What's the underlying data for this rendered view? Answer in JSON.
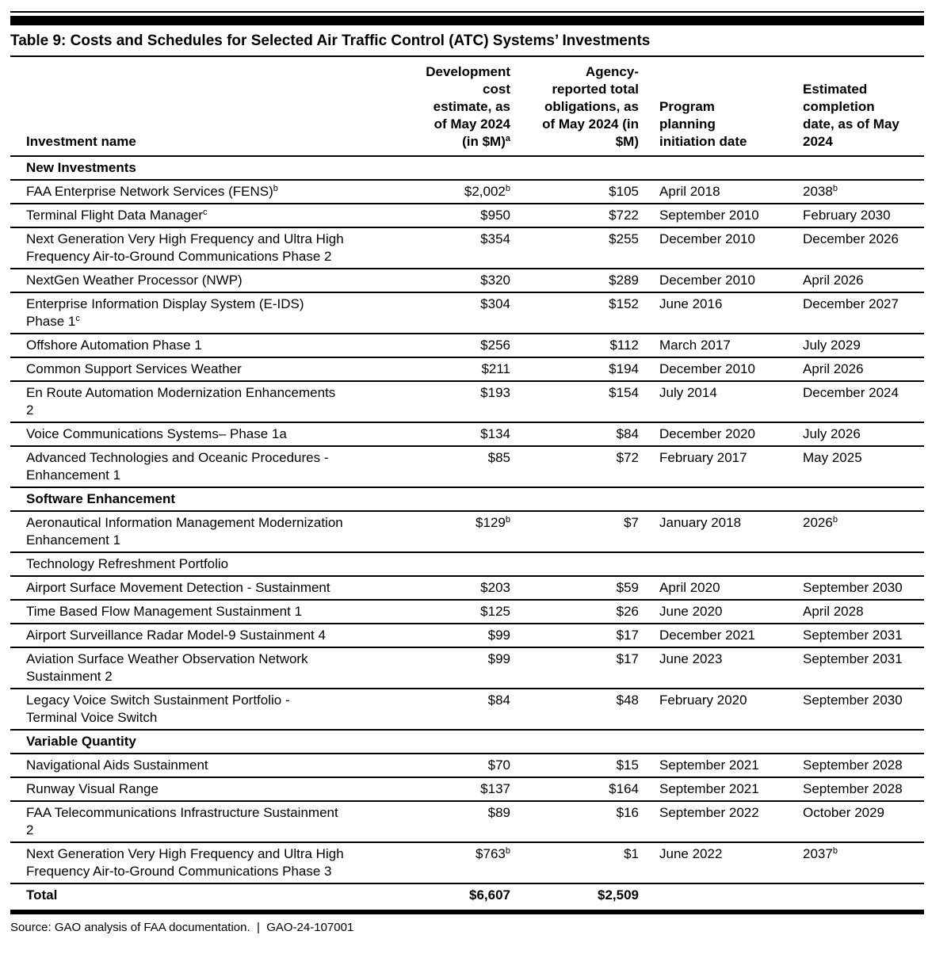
{
  "title": "Table 9: Costs and Schedules for Selected Air Traffic Control (ATC) Systems’ Investments",
  "table": {
    "columns": [
      {
        "label": "Investment name",
        "sup": ""
      },
      {
        "label": "Development\ncost\nestimate, as\nof May 2024\n(in $M)",
        "sup": "a"
      },
      {
        "label": "Agency-\nreported total\nobligations, as\nof May 2024 (in\n$M)",
        "sup": ""
      },
      {
        "label": "Program\nplanning\ninitiation date",
        "sup": ""
      },
      {
        "label": "Estimated\ncompletion\ndate, as of May\n2024",
        "sup": ""
      }
    ],
    "rows": [
      {
        "type": "section",
        "name": "New Investments"
      },
      {
        "type": "data",
        "name": "FAA Enterprise Network Services (FENS)",
        "name_sup": "b",
        "cost": "$2,002",
        "cost_sup": "b",
        "obligations": "$105",
        "initiation": "April 2018",
        "completion": "2038",
        "completion_sup": "b"
      },
      {
        "type": "data",
        "name": "Terminal Flight Data Manager",
        "name_sup": "c",
        "cost": "$950",
        "cost_sup": "",
        "obligations": "$722",
        "initiation": "September 2010",
        "completion": "February 2030",
        "completion_sup": ""
      },
      {
        "type": "data",
        "name": "Next Generation Very High Frequency and Ultra High\nFrequency Air-to-Ground Communications Phase 2",
        "name_sup": "",
        "cost": "$354",
        "cost_sup": "",
        "obligations": "$255",
        "initiation": "December 2010",
        "completion": "December 2026",
        "completion_sup": ""
      },
      {
        "type": "data",
        "name": "NextGen Weather Processor (NWP)",
        "name_sup": "",
        "cost": "$320",
        "cost_sup": "",
        "obligations": "$289",
        "initiation": "December 2010",
        "completion": "April 2026",
        "completion_sup": ""
      },
      {
        "type": "data",
        "name": "Enterprise Information Display System (E-IDS)\nPhase 1",
        "name_sup": "c",
        "cost": "$304",
        "cost_sup": "",
        "obligations": "$152",
        "initiation": "June 2016",
        "completion": "December 2027",
        "completion_sup": ""
      },
      {
        "type": "data",
        "name": "Offshore Automation Phase 1",
        "name_sup": "",
        "cost": "$256",
        "cost_sup": "",
        "obligations": "$112",
        "initiation": "March 2017",
        "completion": "July 2029",
        "completion_sup": ""
      },
      {
        "type": "data",
        "name": "Common Support Services Weather",
        "name_sup": "",
        "cost": "$211",
        "cost_sup": "",
        "obligations": "$194",
        "initiation": "December 2010",
        "completion": "April 2026",
        "completion_sup": ""
      },
      {
        "type": "data",
        "name": "En Route Automation Modernization Enhancements\n2",
        "name_sup": "",
        "cost": "$193",
        "cost_sup": "",
        "obligations": "$154",
        "initiation": "July 2014",
        "completion": "December 2024",
        "completion_sup": ""
      },
      {
        "type": "data",
        "name": "Voice Communications Systems– Phase 1a",
        "name_sup": "",
        "cost": "$134",
        "cost_sup": "",
        "obligations": "$84",
        "initiation": "December 2020",
        "completion": "July 2026",
        "completion_sup": ""
      },
      {
        "type": "data",
        "name": "Advanced Technologies and Oceanic Procedures -\nEnhancement 1",
        "name_sup": "",
        "cost": "$85",
        "cost_sup": "",
        "obligations": "$72",
        "initiation": "February 2017",
        "completion": "May 2025",
        "completion_sup": ""
      },
      {
        "type": "section",
        "name": "Software Enhancement"
      },
      {
        "type": "data",
        "name": "Aeronautical Information Management Modernization\nEnhancement 1",
        "name_sup": "",
        "cost": "$129",
        "cost_sup": "b",
        "obligations": "$7",
        "initiation": "January 2018",
        "completion": "2026",
        "completion_sup": "b"
      },
      {
        "type": "subsection",
        "name": "Technology Refreshment Portfolio"
      },
      {
        "type": "data",
        "name": "Airport Surface Movement Detection - Sustainment",
        "name_sup": "",
        "cost": "$203",
        "cost_sup": "",
        "obligations": "$59",
        "initiation": "April 2020",
        "completion": "September 2030",
        "completion_sup": ""
      },
      {
        "type": "data",
        "name": "Time Based Flow Management Sustainment 1",
        "name_sup": "",
        "cost": "$125",
        "cost_sup": "",
        "obligations": "$26",
        "initiation": "June 2020",
        "completion": "April 2028",
        "completion_sup": ""
      },
      {
        "type": "data",
        "name": "Airport Surveillance Radar Model-9 Sustainment 4",
        "name_sup": "",
        "cost": "$99",
        "cost_sup": "",
        "obligations": "$17",
        "initiation": "December 2021",
        "completion": "September 2031",
        "completion_sup": ""
      },
      {
        "type": "data",
        "name": "Aviation Surface Weather Observation Network\nSustainment 2",
        "name_sup": "",
        "cost": "$99",
        "cost_sup": "",
        "obligations": "$17",
        "initiation": "June 2023",
        "completion": "September 2031",
        "completion_sup": ""
      },
      {
        "type": "data",
        "name": "Legacy Voice Switch Sustainment Portfolio -\nTerminal Voice Switch",
        "name_sup": "",
        "cost": "$84",
        "cost_sup": "",
        "obligations": "$48",
        "initiation": "February 2020",
        "completion": "September 2030",
        "completion_sup": ""
      },
      {
        "type": "section",
        "name": "Variable Quantity"
      },
      {
        "type": "data",
        "name": "Navigational Aids Sustainment",
        "name_sup": "",
        "cost": "$70",
        "cost_sup": "",
        "obligations": "$15",
        "initiation": "September 2021",
        "completion": "September 2028",
        "completion_sup": ""
      },
      {
        "type": "data",
        "name": "Runway Visual Range",
        "name_sup": "",
        "cost": "$137",
        "cost_sup": "",
        "obligations": "$164",
        "initiation": "September 2021",
        "completion": "September 2028",
        "completion_sup": ""
      },
      {
        "type": "data",
        "name": "FAA Telecommunications Infrastructure Sustainment\n2",
        "name_sup": "",
        "cost": "$89",
        "cost_sup": "",
        "obligations": "$16",
        "initiation": "September 2022",
        "completion": "October 2029",
        "completion_sup": ""
      },
      {
        "type": "data",
        "name": "Next Generation Very High Frequency and Ultra High\nFrequency Air-to-Ground Communications Phase 3",
        "name_sup": "",
        "cost": "$763",
        "cost_sup": "b",
        "obligations": "$1",
        "initiation": "June 2022",
        "completion": "2037",
        "completion_sup": "b"
      },
      {
        "type": "total",
        "name": "Total",
        "name_sup": "",
        "cost": "$6,607",
        "cost_sup": "",
        "obligations": "$2,509",
        "initiation": "",
        "completion": "",
        "completion_sup": ""
      }
    ]
  },
  "footer": {
    "text": "Source: GAO analysis of FAA documentation.  |  GAO-24-107001"
  }
}
